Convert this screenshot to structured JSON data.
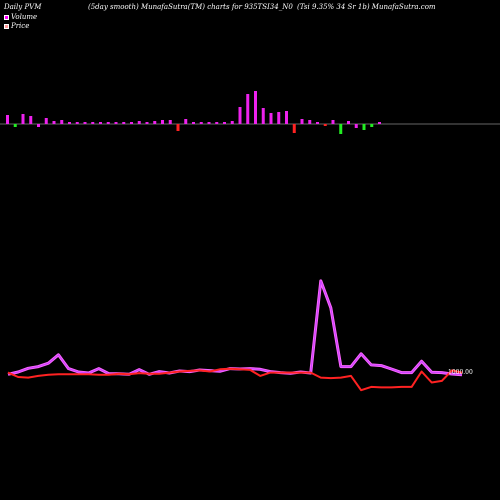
{
  "header": {
    "left": "Daily PVM",
    "middle": "(5day smooth) MunafaSutra(TM) charts for 935TSI34_N0",
    "right": "(Tsi  9.35% 34  Sr 1b) MunafaSutra.com"
  },
  "legend": {
    "volume_label": "Volume",
    "price_label": "Price",
    "volume_color": "#ff00ff",
    "price_color": "#ff9999"
  },
  "colors": {
    "background": "#000000",
    "axis_line": "#cccccc",
    "bar_up": "#ee22ee",
    "bar_down": "#ff2222",
    "bar_green": "#22ee22",
    "volume_line": "#cc44ff",
    "volume_line_glow": "#ff66ff",
    "price_line": "#ff2222"
  },
  "chart_data": {
    "type": "line",
    "series": [
      {
        "name": "Volume",
        "values": [
          2,
          9,
          20,
          25,
          35,
          60,
          19,
          9,
          6,
          19,
          4,
          4,
          2,
          16,
          2,
          10,
          6,
          12,
          10,
          15,
          13,
          11,
          19,
          18,
          19,
          17,
          10,
          7,
          5,
          9,
          6,
          280,
          200,
          25,
          25,
          63,
          30,
          28,
          18,
          7,
          7,
          41,
          8,
          7,
          3,
          1
        ]
      },
      {
        "name": "Price",
        "values": [
          998,
          990,
          989,
          992,
          994,
          995,
          995,
          995,
          995,
          994,
          994,
          996,
          995,
          997,
          996,
          996,
          998,
          1000,
          1001,
          1002,
          1000,
          1004,
          1005,
          1004,
          1003,
          992,
          998,
          998,
          998,
          998,
          998,
          989,
          988,
          989,
          992,
          966,
          972,
          971,
          971,
          972,
          972,
          1000,
          980,
          983,
          1002,
          998
        ]
      }
    ],
    "bars": [
      {
        "v": 9,
        "c": "up"
      },
      {
        "v": -3,
        "c": "green"
      },
      {
        "v": 10,
        "c": "up"
      },
      {
        "v": 8,
        "c": "up"
      },
      {
        "v": -3,
        "c": "up"
      },
      {
        "v": 6,
        "c": "up"
      },
      {
        "v": 3,
        "c": "up"
      },
      {
        "v": 4,
        "c": "up"
      },
      {
        "v": 2,
        "c": "up"
      },
      {
        "v": 2,
        "c": "up"
      },
      {
        "v": 2,
        "c": "up"
      },
      {
        "v": 2,
        "c": "up"
      },
      {
        "v": 2,
        "c": "up"
      },
      {
        "v": 2,
        "c": "up"
      },
      {
        "v": 2,
        "c": "up"
      },
      {
        "v": 2,
        "c": "up"
      },
      {
        "v": 2,
        "c": "up"
      },
      {
        "v": 3,
        "c": "up"
      },
      {
        "v": 2,
        "c": "up"
      },
      {
        "v": 3,
        "c": "up"
      },
      {
        "v": 4,
        "c": "up"
      },
      {
        "v": 4,
        "c": "up"
      },
      {
        "v": -7,
        "c": "down"
      },
      {
        "v": 5,
        "c": "up"
      },
      {
        "v": 2,
        "c": "up"
      },
      {
        "v": 2,
        "c": "up"
      },
      {
        "v": 2,
        "c": "up"
      },
      {
        "v": 2,
        "c": "up"
      },
      {
        "v": 2,
        "c": "up"
      },
      {
        "v": 3,
        "c": "up"
      },
      {
        "v": 17,
        "c": "up"
      },
      {
        "v": 30,
        "c": "up"
      },
      {
        "v": 33,
        "c": "up"
      },
      {
        "v": 16,
        "c": "up"
      },
      {
        "v": 11,
        "c": "up"
      },
      {
        "v": 12,
        "c": "up"
      },
      {
        "v": 13,
        "c": "up"
      },
      {
        "v": -9,
        "c": "down"
      },
      {
        "v": 5,
        "c": "up"
      },
      {
        "v": 4,
        "c": "up"
      },
      {
        "v": 2,
        "c": "up"
      },
      {
        "v": -2,
        "c": "down"
      },
      {
        "v": 4,
        "c": "up"
      },
      {
        "v": -10,
        "c": "green"
      },
      {
        "v": 3,
        "c": "up"
      },
      {
        "v": -4,
        "c": "up"
      },
      {
        "v": -6,
        "c": "green"
      },
      {
        "v": -3,
        "c": "green"
      },
      {
        "v": 2,
        "c": "up"
      }
    ],
    "price_end_label": "1000.00",
    "title": "(5day smooth) MunafaSutra(TM) charts for 935TSI34_N0",
    "xlabel": "",
    "ylabel": ""
  }
}
